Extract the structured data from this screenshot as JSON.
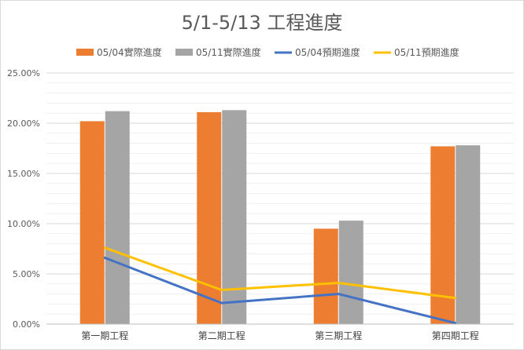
{
  "chart_data": {
    "type": "bar",
    "title": "5/1-5/13 工程進度",
    "categories": [
      "第一期工程",
      "第二期工程",
      "第三期工程",
      "第四期工程"
    ],
    "series": [
      {
        "name": "05/04實際進度",
        "kind": "bar",
        "color": "#ED7D31",
        "values": [
          20.2,
          21.1,
          9.5,
          17.7
        ]
      },
      {
        "name": "05/11實際進度",
        "kind": "bar",
        "color": "#A5A5A5",
        "values": [
          21.2,
          21.3,
          10.3,
          17.8
        ]
      },
      {
        "name": "05/04預期進度",
        "kind": "line",
        "color": "#4472C4",
        "values": [
          6.6,
          2.1,
          3.0,
          0.1
        ]
      },
      {
        "name": "05/11預期進度",
        "kind": "line",
        "color": "#FFC000",
        "values": [
          7.6,
          3.4,
          4.1,
          2.6
        ]
      }
    ],
    "y_ticks": [
      "0.00%",
      "5.00%",
      "10.00%",
      "15.00%",
      "20.00%",
      "25.00%"
    ],
    "ylim": [
      0,
      25
    ],
    "xlabel": "",
    "ylabel": "",
    "grid": true,
    "legend_position": "top"
  }
}
